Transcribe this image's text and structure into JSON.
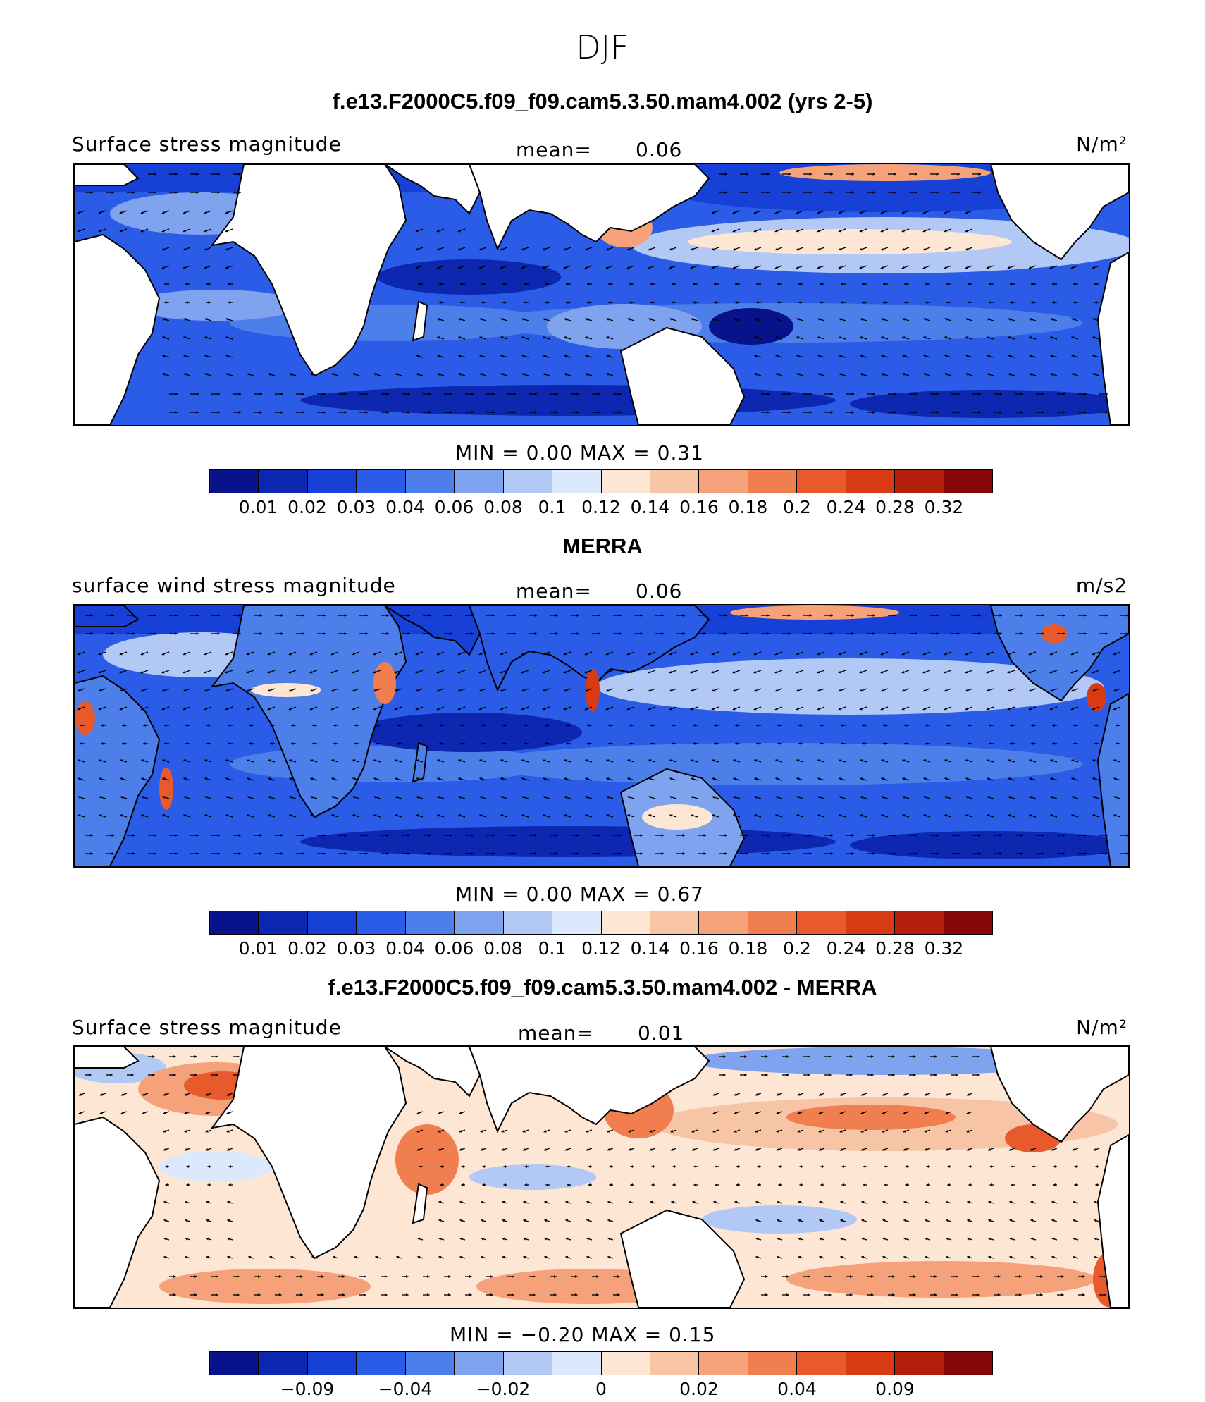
{
  "figure_title": "DJF",
  "panels": [
    {
      "title": "f.e13.F2000C5.f09_f09.cam5.3.50.mam4.002 (yrs 2-5)",
      "left_label": "Surface stress magnitude",
      "mean_label": "mean=",
      "mean_value": "0.06",
      "units": "N/m²",
      "minmax": "MIN =    0.00  MAX =    0.31",
      "ticks": [
        "0.01",
        "0.02",
        "0.03",
        "0.04",
        "0.06",
        "0.08",
        "0.1",
        "0.12",
        "0.14",
        "0.16",
        "0.18",
        "0.2",
        "0.24",
        "0.28",
        "0.32"
      ],
      "colors": [
        "#08128a",
        "#0d27b0",
        "#1740d6",
        "#2b5ce8",
        "#4c7fea",
        "#7fa3ef",
        "#b2c8f5",
        "#dce8fb",
        "#fde6d3",
        "#f8c4a6",
        "#f5a27a",
        "#f07e4f",
        "#e85a2c",
        "#d83a14",
        "#b31f0b",
        "#85070a"
      ],
      "land_mask": true
    },
    {
      "title": "MERRA",
      "left_label": "surface wind stress magnitude",
      "mean_label": "mean=",
      "mean_value": "0.06",
      "units": "m/s2",
      "minmax": "MIN =    0.00  MAX =    0.67",
      "ticks": [
        "0.01",
        "0.02",
        "0.03",
        "0.04",
        "0.06",
        "0.08",
        "0.1",
        "0.12",
        "0.14",
        "0.16",
        "0.18",
        "0.2",
        "0.24",
        "0.28",
        "0.32"
      ],
      "colors": [
        "#08128a",
        "#0d27b0",
        "#1740d6",
        "#2b5ce8",
        "#4c7fea",
        "#7fa3ef",
        "#b2c8f5",
        "#dce8fb",
        "#fde6d3",
        "#f8c4a6",
        "#f5a27a",
        "#f07e4f",
        "#e85a2c",
        "#d83a14",
        "#b31f0b",
        "#85070a"
      ],
      "land_mask": false
    },
    {
      "title": "f.e13.F2000C5.f09_f09.cam5.3.50.mam4.002 - MERRA",
      "left_label": "Surface stress magnitude",
      "mean_label": "mean=",
      "mean_value": "0.01",
      "units": "N/m²",
      "minmax": "MIN =  −0.20  MAX =    0.15",
      "ticks": [
        "−0.09",
        "−0.04",
        "−0.02",
        "0",
        "0.02",
        "0.04",
        "0.09"
      ],
      "colors": [
        "#08128a",
        "#0d27b0",
        "#1740d6",
        "#2b5ce8",
        "#4c7fea",
        "#7fa3ef",
        "#b2c8f5",
        "#dce8fb",
        "#fde6d3",
        "#f8c4a6",
        "#f5a27a",
        "#f07e4f",
        "#e85a2c",
        "#d83a14",
        "#b31f0b",
        "#85070a"
      ],
      "land_mask": true
    }
  ]
}
